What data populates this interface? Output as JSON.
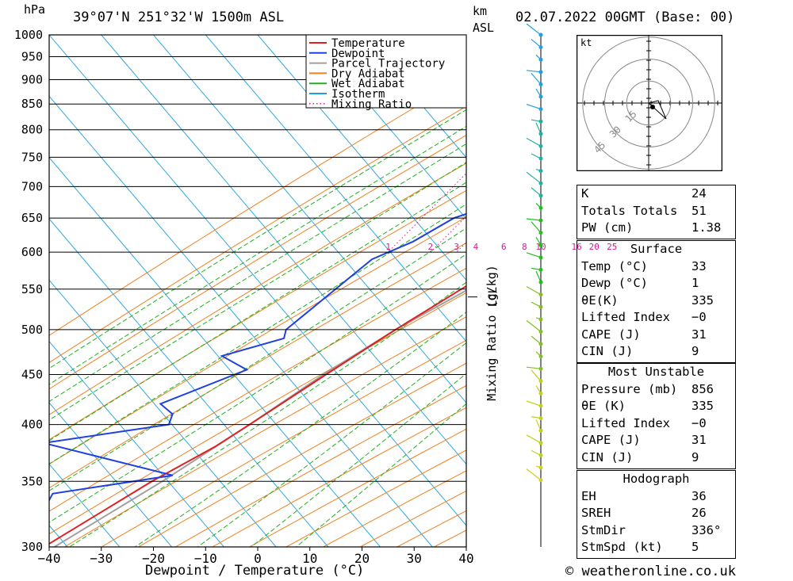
{
  "header": {
    "pressure_unit": "hPa",
    "location": "39°07'N 251°32'W 1500m ASL",
    "height_unit_top": "km",
    "height_unit_bottom": "ASL",
    "datetime": "02.07.2022 00GMT (Base: 00)"
  },
  "footer": {
    "copyright": "© weatheronline.co.uk"
  },
  "chart_data": {
    "type": "line",
    "xlabel": "Dewpoint / Temperature (°C)",
    "ylabel": "hPa",
    "secondary_ylabel": "Mixing Ratio (g/kg)",
    "x_ticks": [
      -40,
      -30,
      -20,
      -10,
      0,
      10,
      20,
      30,
      40
    ],
    "x_tick_labels": [
      "−40",
      "−30",
      "−20",
      "−10",
      "0",
      "10",
      "20",
      "30",
      "40"
    ],
    "pressure_levels": [
      300,
      350,
      400,
      450,
      500,
      550,
      600,
      650,
      700,
      750,
      800,
      850,
      900,
      950,
      1000
    ],
    "xlim": [
      -40,
      40
    ],
    "ylim": [
      1000,
      300
    ],
    "y_scale": "log",
    "skew": "isotherms skewed right",
    "lcl_label": "LCL",
    "lcl_pressure": 540,
    "legend_position": "top-right",
    "legend": [
      {
        "name": "Temperature",
        "color": "#e02020",
        "style": "solid"
      },
      {
        "name": "Dewpoint",
        "color": "#2040e0",
        "style": "solid"
      },
      {
        "name": "Parcel Trajectory",
        "color": "#a0a0a0",
        "style": "solid"
      },
      {
        "name": "Dry Adiabat",
        "color": "#f08020",
        "style": "solid"
      },
      {
        "name": "Wet Adiabat",
        "color": "#20b020",
        "style": "solid"
      },
      {
        "name": "Isotherm",
        "color": "#20a0e0",
        "style": "solid"
      },
      {
        "name": "Mixing Ratio",
        "color": "#d02090",
        "style": "dotted"
      }
    ],
    "mixing_ratio_labels": [
      "1",
      "2",
      "3",
      "4",
      "6",
      "8",
      "10",
      "16",
      "20",
      "25"
    ],
    "mixing_ratio_values": [
      1,
      2,
      3,
      4,
      6,
      8,
      10,
      16,
      20,
      25
    ],
    "series": [
      {
        "name": "Temperature",
        "color": "#e02020",
        "points": [
          {
            "p": 856,
            "t": 33
          },
          {
            "p": 850,
            "t": 31
          },
          {
            "p": 800,
            "t": 26
          },
          {
            "p": 750,
            "t": 21
          },
          {
            "p": 700,
            "t": 15
          },
          {
            "p": 650,
            "t": 9.5
          },
          {
            "p": 600,
            "t": 3
          },
          {
            "p": 550,
            "t": -3
          },
          {
            "p": 500,
            "t": -9
          },
          {
            "p": 450,
            "t": -15
          },
          {
            "p": 400,
            "t": -21.5
          },
          {
            "p": 380,
            "t": -24.5
          },
          {
            "p": 350,
            "t": -31
          },
          {
            "p": 300,
            "t": -41
          }
        ]
      },
      {
        "name": "Dewpoint",
        "color": "#2040e0",
        "points": [
          {
            "p": 856,
            "t": 1
          },
          {
            "p": 850,
            "t": 1.5
          },
          {
            "p": 800,
            "t": -1
          },
          {
            "p": 750,
            "t": -4
          },
          {
            "p": 735,
            "t": -7
          },
          {
            "p": 700,
            "t": -9
          },
          {
            "p": 680,
            "t": -8
          },
          {
            "p": 650,
            "t": -16
          },
          {
            "p": 615,
            "t": -20
          },
          {
            "p": 590,
            "t": -25
          },
          {
            "p": 500,
            "t": -30
          },
          {
            "p": 490,
            "t": -29
          },
          {
            "p": 470,
            "t": -38
          },
          {
            "p": 455,
            "t": -31
          },
          {
            "p": 420,
            "t": -42
          },
          {
            "p": 410,
            "t": -38
          },
          {
            "p": 400,
            "t": -37
          },
          {
            "p": 383,
            "t": -58
          },
          {
            "p": 355,
            "t": -28
          },
          {
            "p": 340,
            "t": -48
          },
          {
            "p": 300,
            "t": -45
          }
        ]
      },
      {
        "name": "Parcel Trajectory",
        "color": "#a0a0a0",
        "points": [
          {
            "p": 856,
            "t": 33
          },
          {
            "p": 800,
            "t": 27.5
          },
          {
            "p": 750,
            "t": 22.5
          },
          {
            "p": 700,
            "t": 17
          },
          {
            "p": 650,
            "t": 11
          },
          {
            "p": 600,
            "t": 5
          },
          {
            "p": 540,
            "t": -3
          },
          {
            "p": 500,
            "t": -9
          },
          {
            "p": 450,
            "t": -15.5
          },
          {
            "p": 400,
            "t": -21.5
          },
          {
            "p": 350,
            "t": -29
          },
          {
            "p": 300,
            "t": -39
          }
        ]
      }
    ]
  },
  "hodograph": {
    "unit_label": "kt",
    "ring_labels": [
      "15",
      "30",
      "45"
    ],
    "ring_values": [
      15,
      30,
      45
    ]
  },
  "indices": {
    "top": [
      {
        "label": "K",
        "value": "24"
      },
      {
        "label": "Totals Totals",
        "value": "51"
      },
      {
        "label": "PW (cm)",
        "value": "1.38"
      }
    ],
    "surface": {
      "title": "Surface",
      "rows": [
        {
          "label": "Temp (°C)",
          "value": "33"
        },
        {
          "label": "Dewp (°C)",
          "value": "1"
        },
        {
          "label": "θE(K)",
          "value": "335"
        },
        {
          "label": "Lifted Index",
          "value": "−0"
        },
        {
          "label": "CAPE (J)",
          "value": "31"
        },
        {
          "label": "CIN (J)",
          "value": "9"
        }
      ]
    },
    "most_unstable": {
      "title": "Most Unstable",
      "rows": [
        {
          "label": "Pressure (mb)",
          "value": "856"
        },
        {
          "label": "θE (K)",
          "value": "335"
        },
        {
          "label": "Lifted Index",
          "value": "−0"
        },
        {
          "label": "CAPE (J)",
          "value": "31"
        },
        {
          "label": "CIN (J)",
          "value": "9"
        }
      ]
    },
    "hodograph_box": {
      "title": "Hodograph",
      "rows": [
        {
          "label": "EH",
          "value": "36"
        },
        {
          "label": "SREH",
          "value": "26"
        },
        {
          "label": "StmDir",
          "value": "336°"
        },
        {
          "label": "StmSpd (kt)",
          "value": "5"
        }
      ]
    }
  }
}
